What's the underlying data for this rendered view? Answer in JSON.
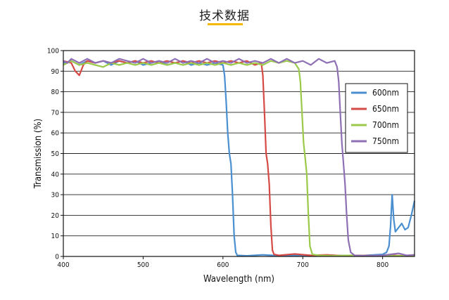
{
  "page": {
    "title": "技术数据"
  },
  "chart_data": {
    "type": "line",
    "xlabel": "Wavelength (nm)",
    "ylabel": "Transmission (%)",
    "xlim": [
      400,
      840
    ],
    "ylim": [
      0,
      100
    ],
    "x_ticks": [
      400,
      500,
      600,
      700,
      800
    ],
    "y_ticks": [
      0,
      10,
      20,
      30,
      40,
      50,
      60,
      70,
      80,
      90,
      100
    ],
    "grid": "horizontal",
    "legend_position": "right",
    "series": [
      {
        "name": "600nm",
        "color": "#4a8fd0",
        "points": [
          [
            400,
            94
          ],
          [
            410,
            95
          ],
          [
            420,
            93
          ],
          [
            430,
            95
          ],
          [
            440,
            94
          ],
          [
            450,
            95
          ],
          [
            460,
            93
          ],
          [
            470,
            95
          ],
          [
            480,
            94
          ],
          [
            490,
            95
          ],
          [
            500,
            93
          ],
          [
            510,
            94
          ],
          [
            520,
            95
          ],
          [
            530,
            93
          ],
          [
            540,
            94
          ],
          [
            550,
            95
          ],
          [
            560,
            93
          ],
          [
            570,
            94
          ],
          [
            580,
            93
          ],
          [
            590,
            94
          ],
          [
            600,
            93
          ],
          [
            602,
            88
          ],
          [
            604,
            75
          ],
          [
            606,
            60
          ],
          [
            608,
            50
          ],
          [
            610,
            45
          ],
          [
            612,
            30
          ],
          [
            614,
            10
          ],
          [
            616,
            2
          ],
          [
            618,
            0.5
          ],
          [
            630,
            0.3
          ],
          [
            650,
            0.8
          ],
          [
            670,
            0.3
          ],
          [
            690,
            0.5
          ],
          [
            710,
            0.3
          ],
          [
            730,
            0.5
          ],
          [
            750,
            0.4
          ],
          [
            770,
            0.3
          ],
          [
            790,
            0.8
          ],
          [
            800,
            1
          ],
          [
            805,
            2
          ],
          [
            808,
            5
          ],
          [
            810,
            15
          ],
          [
            812,
            30
          ],
          [
            814,
            18
          ],
          [
            816,
            12
          ],
          [
            820,
            14
          ],
          [
            824,
            16
          ],
          [
            828,
            13
          ],
          [
            832,
            14
          ],
          [
            836,
            20
          ],
          [
            840,
            27
          ]
        ]
      },
      {
        "name": "650nm",
        "color": "#d54a45",
        "points": [
          [
            400,
            95
          ],
          [
            410,
            94
          ],
          [
            415,
            90
          ],
          [
            420,
            88
          ],
          [
            425,
            93
          ],
          [
            430,
            95
          ],
          [
            440,
            94
          ],
          [
            450,
            95
          ],
          [
            460,
            94
          ],
          [
            470,
            95
          ],
          [
            480,
            94
          ],
          [
            490,
            95
          ],
          [
            500,
            94
          ],
          [
            510,
            95
          ],
          [
            520,
            94
          ],
          [
            530,
            95
          ],
          [
            540,
            94
          ],
          [
            550,
            95
          ],
          [
            560,
            94
          ],
          [
            570,
            95
          ],
          [
            580,
            94
          ],
          [
            590,
            95
          ],
          [
            600,
            94
          ],
          [
            610,
            95
          ],
          [
            620,
            94
          ],
          [
            630,
            95
          ],
          [
            640,
            93
          ],
          [
            648,
            94
          ],
          [
            650,
            88
          ],
          [
            652,
            70
          ],
          [
            654,
            50
          ],
          [
            656,
            45
          ],
          [
            658,
            35
          ],
          [
            660,
            15
          ],
          [
            662,
            3
          ],
          [
            664,
            1
          ],
          [
            670,
            0.5
          ],
          [
            690,
            1.2
          ],
          [
            710,
            0.5
          ],
          [
            730,
            0.8
          ],
          [
            750,
            0.3
          ],
          [
            770,
            0.5
          ],
          [
            790,
            0.3
          ],
          [
            810,
            0.5
          ],
          [
            830,
            0.3
          ],
          [
            840,
            0.5
          ]
        ]
      },
      {
        "name": "700nm",
        "color": "#9bc94a",
        "points": [
          [
            400,
            93
          ],
          [
            410,
            95
          ],
          [
            420,
            93
          ],
          [
            430,
            94
          ],
          [
            440,
            93
          ],
          [
            450,
            92
          ],
          [
            460,
            94
          ],
          [
            470,
            93
          ],
          [
            480,
            94
          ],
          [
            490,
            93
          ],
          [
            500,
            94
          ],
          [
            510,
            93
          ],
          [
            520,
            94
          ],
          [
            530,
            93
          ],
          [
            540,
            94
          ],
          [
            550,
            93
          ],
          [
            560,
            94
          ],
          [
            570,
            93
          ],
          [
            580,
            94
          ],
          [
            590,
            93
          ],
          [
            600,
            94
          ],
          [
            610,
            93
          ],
          [
            620,
            94
          ],
          [
            630,
            93
          ],
          [
            640,
            94
          ],
          [
            650,
            93
          ],
          [
            660,
            95
          ],
          [
            670,
            94
          ],
          [
            680,
            95
          ],
          [
            690,
            94
          ],
          [
            695,
            91
          ],
          [
            697,
            85
          ],
          [
            699,
            70
          ],
          [
            701,
            55
          ],
          [
            703,
            48
          ],
          [
            705,
            40
          ],
          [
            707,
            20
          ],
          [
            709,
            5
          ],
          [
            712,
            1
          ],
          [
            720,
            0.5
          ],
          [
            740,
            0.3
          ],
          [
            760,
            0.5
          ],
          [
            780,
            0.3
          ],
          [
            800,
            0.2
          ],
          [
            820,
            0.3
          ],
          [
            840,
            0.2
          ]
        ]
      },
      {
        "name": "750nm",
        "color": "#8f6fb5",
        "points": [
          [
            400,
            95
          ],
          [
            405,
            94
          ],
          [
            410,
            96
          ],
          [
            420,
            94
          ],
          [
            430,
            96
          ],
          [
            440,
            94
          ],
          [
            450,
            95
          ],
          [
            460,
            94
          ],
          [
            470,
            96
          ],
          [
            480,
            95
          ],
          [
            490,
            94
          ],
          [
            500,
            96
          ],
          [
            510,
            94
          ],
          [
            520,
            95
          ],
          [
            530,
            94
          ],
          [
            540,
            96
          ],
          [
            550,
            94
          ],
          [
            560,
            95
          ],
          [
            570,
            94
          ],
          [
            580,
            96
          ],
          [
            590,
            94
          ],
          [
            600,
            95
          ],
          [
            610,
            94
          ],
          [
            620,
            96
          ],
          [
            630,
            94
          ],
          [
            640,
            95
          ],
          [
            650,
            94
          ],
          [
            660,
            96
          ],
          [
            670,
            94
          ],
          [
            680,
            96
          ],
          [
            690,
            94
          ],
          [
            700,
            95
          ],
          [
            710,
            93
          ],
          [
            720,
            96
          ],
          [
            730,
            94
          ],
          [
            740,
            95
          ],
          [
            743,
            92
          ],
          [
            745,
            85
          ],
          [
            747,
            70
          ],
          [
            749,
            55
          ],
          [
            751,
            45
          ],
          [
            753,
            35
          ],
          [
            755,
            20
          ],
          [
            757,
            8
          ],
          [
            760,
            2
          ],
          [
            765,
            0.5
          ],
          [
            780,
            0.3
          ],
          [
            800,
            0.5
          ],
          [
            820,
            1.5
          ],
          [
            830,
            0.5
          ],
          [
            840,
            0.8
          ]
        ]
      }
    ]
  }
}
